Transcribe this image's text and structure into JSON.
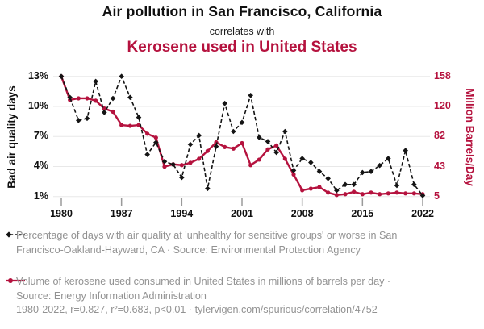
{
  "header": {
    "title": "Air pollution in San Francisco, California",
    "subtitle": "correlates with",
    "correlate_title": "Kerosene used in United States"
  },
  "chart_data": {
    "type": "line",
    "x": [
      1980,
      1981,
      1982,
      1983,
      1984,
      1985,
      1986,
      1987,
      1988,
      1989,
      1990,
      1991,
      1992,
      1993,
      1994,
      1995,
      1996,
      1997,
      1998,
      1999,
      2000,
      2001,
      2002,
      2003,
      2004,
      2005,
      2006,
      2007,
      2008,
      2009,
      2010,
      2011,
      2012,
      2013,
      2014,
      2015,
      2016,
      2017,
      2018,
      2019,
      2020,
      2021,
      2022
    ],
    "series": [
      {
        "name": "Percentage of bad air quality days in San Francisco-Oakland-Hayward, CA",
        "axis": "left",
        "style": "dashed-diamond",
        "color": "#141414",
        "values": [
          13,
          10.9,
          8.6,
          8.8,
          12.5,
          9.4,
          10.8,
          13,
          10.9,
          8.9,
          5.2,
          6.4,
          4.5,
          4.2,
          2.9,
          6.2,
          7.1,
          1.8,
          6,
          10.3,
          7.5,
          8.4,
          11.1,
          6.9,
          6.5,
          5.4,
          7.5,
          3.6,
          4.8,
          4.4,
          3.5,
          2.8,
          1.6,
          2.2,
          2.2,
          3.4,
          3.5,
          4.1,
          4.8,
          2.1,
          5.6,
          2.2,
          1.1
        ]
      },
      {
        "name": "Volume of kerosene used consumed in United States",
        "axis": "right",
        "style": "solid-dot",
        "color": "#b5123e",
        "values": [
          158,
          128,
          130,
          130,
          127,
          117,
          113,
          96,
          95,
          96,
          85,
          80,
          43,
          46,
          45,
          48,
          53,
          63,
          74,
          68,
          66,
          73,
          45,
          52,
          65,
          70,
          53,
          33,
          13,
          15,
          17,
          10,
          7,
          8,
          11,
          8,
          10,
          8,
          9,
          10,
          9,
          9,
          8
        ]
      }
    ],
    "left_axis": {
      "label": "Bad air quality days",
      "ticks": [
        "13%",
        "10%",
        "7%",
        "4%",
        "1%"
      ],
      "tick_values": [
        13,
        10,
        7,
        4,
        1
      ],
      "range": [
        1,
        13
      ]
    },
    "right_axis": {
      "label": "Million Barrels/Day",
      "ticks": [
        "158",
        "120",
        "82",
        "43",
        "5"
      ],
      "tick_values": [
        158,
        120,
        82,
        43,
        5
      ],
      "range": [
        5,
        158
      ]
    },
    "x_axis": {
      "tick_labels": [
        "1980",
        "1987",
        "1994",
        "2001",
        "2008",
        "2015",
        "2022"
      ],
      "tick_values": [
        1980,
        1987,
        1994,
        2001,
        2008,
        2015,
        2022
      ]
    },
    "grid": true,
    "legend_position": "bottom"
  },
  "legend": {
    "entries": [
      {
        "marker": "black-diamond-dashed-line",
        "text": "Percentage of days with air quality at 'unhealthy for sensitive groups' or worse in San Francisco-Oakland-Hayward, CA · Source: Environmental Protection Agency"
      },
      {
        "marker": "red-dot-solid-line",
        "text": "Volume of kerosene used consumed in United States in millions of barrels per day · Source: Energy Information Administration"
      }
    ]
  },
  "footer": {
    "stats": "1980-2022, r=0.827, r²=0.683, p<0.01 · tylervigen.com/spurious/correlation/4752"
  },
  "colors": {
    "accent_red": "#b5123e",
    "series_black": "#141414",
    "legend_gray": "#929292",
    "gridline": "#e8e8e8"
  }
}
